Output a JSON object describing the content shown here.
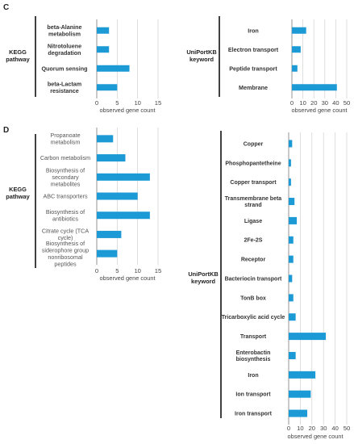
{
  "panel_labels": [
    "C",
    "D"
  ],
  "chart_data": [
    {
      "id": "C-kegg",
      "type": "bar",
      "orientation": "horizontal",
      "panel": "C",
      "ylabel": "KEGG pathway",
      "xlabel": "observed gene count",
      "categories": [
        "beta-Alanine metabolism",
        "Nitrotoluene degradation",
        "Quorum sensing",
        "beta-Lactam resistance"
      ],
      "values": [
        3,
        3,
        8,
        5
      ],
      "xlim": [
        0,
        15
      ],
      "xticks": [
        "0",
        "5",
        "10",
        "15"
      ],
      "bold_labels": true,
      "color": "#1b9ad6",
      "grid": true
    },
    {
      "id": "C-uniprot",
      "type": "bar",
      "orientation": "horizontal",
      "panel": "C",
      "ylabel": "UniPortKB keyword",
      "xlabel": "observed gene count",
      "categories": [
        "Iron",
        "Electron transport",
        "Peptide transport",
        "Membrane"
      ],
      "values": [
        13,
        8,
        5,
        41
      ],
      "xlim": [
        0,
        50
      ],
      "xticks": [
        "0",
        "10",
        "20",
        "30",
        "40",
        "50"
      ],
      "bold_labels": true,
      "color": "#1b9ad6",
      "grid": true
    },
    {
      "id": "D-kegg",
      "type": "bar",
      "orientation": "horizontal",
      "panel": "D",
      "ylabel": "KEGG pathway",
      "xlabel": "observed gene count",
      "categories": [
        "Propanoate metabolism",
        "Carbon metabolism",
        "Biosynthesis of secondary metabolites",
        "ABC transporters",
        "Biosynthesis of antibiotics",
        "Citrate cycle (TCA cycle)",
        "Biosynthesis of siderophore group nonribosomal peptides"
      ],
      "values": [
        4,
        7,
        13,
        10,
        13,
        6,
        5
      ],
      "xlim": [
        0,
        15
      ],
      "xticks": [
        "0",
        "5",
        "10",
        "15"
      ],
      "bold_labels": false,
      "color": "#1b9ad6",
      "grid": true
    },
    {
      "id": "D-uniprot",
      "type": "bar",
      "orientation": "horizontal",
      "panel": "D",
      "ylabel": "UniPortKB keyword",
      "xlabel": "observed gene count",
      "categories": [
        "Copper",
        "Phosphopantetheine",
        "Copper transport",
        "Transmembrane beta strand",
        "Ligase",
        "2Fe-2S",
        "Receptor",
        "Bacteriocin transport",
        "TonB box",
        "Tricarboxylic acid cycle",
        "Transport",
        "Enterobactin biosynthesis",
        "Iron",
        "Ion transport",
        "Iron transport"
      ],
      "values": [
        3,
        2,
        2,
        5,
        7,
        4,
        4,
        3,
        4,
        6,
        32,
        6,
        23,
        19,
        16
      ],
      "xlim": [
        0,
        50
      ],
      "xticks": [
        "0",
        "10",
        "20",
        "30",
        "40",
        "50"
      ],
      "bold_labels": true,
      "color": "#1b9ad6",
      "grid": true
    }
  ]
}
